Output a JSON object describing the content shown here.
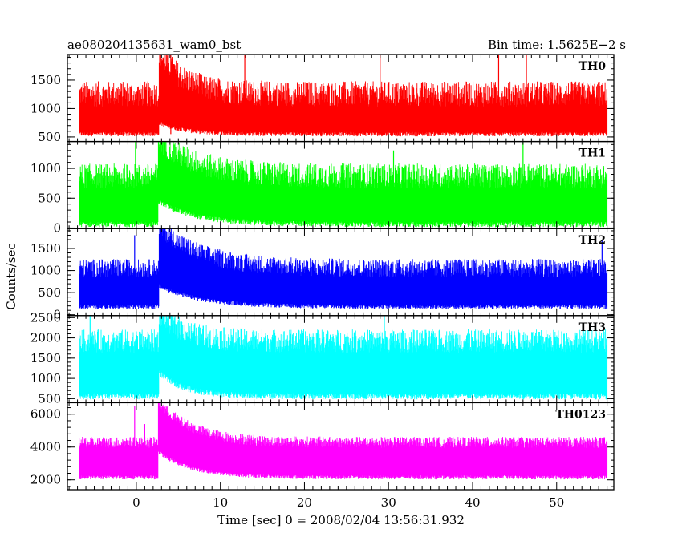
{
  "header": {
    "left": "ae080204135631_wam0_bst",
    "right": "Bin time: 1.5625E−2 s"
  },
  "axes": {
    "xlabel": "Time [sec] 0 = 2008/02/04 13:56:31.932",
    "ylabel": "Counts/sec"
  },
  "chart_data": {
    "type": "line",
    "x_range": [
      -8.2,
      56.8
    ],
    "x_ticks": [
      0,
      10,
      20,
      30,
      40,
      50
    ],
    "x_step": 0.015625,
    "panels": [
      {
        "name": "TH0",
        "color": "#ff0000",
        "y_range": [
          420,
          1950
        ],
        "y_ticks": [
          500,
          1000,
          1500
        ],
        "baseline": {
          "upper_mean": 1200,
          "upper_spread": 280,
          "lower": 550
        },
        "burst": {
          "start": 2.7,
          "peak_upper": 1950,
          "lower_peak": 750,
          "decay_sec": 3.0
        },
        "spikes": [
          {
            "x": 4.1,
            "y": 1950
          },
          {
            "x": 12.9,
            "y": 1950
          },
          {
            "x": 29.0,
            "y": 1950
          },
          {
            "x": 43.1,
            "y": 1950
          },
          {
            "x": 46.4,
            "y": 1950
          }
        ]
      },
      {
        "name": "TH1",
        "color": "#00ff00",
        "y_range": [
          -10,
          1450
        ],
        "y_ticks": [
          0,
          500,
          1000
        ],
        "baseline": {
          "upper_mean": 820,
          "upper_spread": 260,
          "lower": 60
        },
        "burst": {
          "start": 2.6,
          "peak_upper": 1450,
          "lower_peak": 450,
          "decay_sec": 4.5
        },
        "spikes": [
          {
            "x": -0.1,
            "y": 1450
          },
          {
            "x": 30.6,
            "y": 1300
          },
          {
            "x": 46.0,
            "y": 1450
          }
        ]
      },
      {
        "name": "TH2",
        "color": "#0000ff",
        "y_range": [
          -20,
          1950
        ],
        "y_ticks": [
          0,
          500,
          1000,
          1500
        ],
        "baseline": {
          "upper_mean": 1000,
          "upper_spread": 260,
          "lower": 180
        },
        "burst": {
          "start": 2.7,
          "peak_upper": 1950,
          "lower_peak": 650,
          "decay_sec": 5.0
        },
        "spikes": [
          {
            "x": -0.2,
            "y": 1800
          },
          {
            "x": 55.4,
            "y": 1700
          }
        ]
      },
      {
        "name": "TH3",
        "color": "#00ffff",
        "y_range": [
          400,
          2550
        ],
        "y_ticks": [
          500,
          1000,
          1500,
          2000,
          2500
        ],
        "baseline": {
          "upper_mean": 1850,
          "upper_spread": 360,
          "lower": 560
        },
        "burst": {
          "start": 2.7,
          "peak_upper": 2550,
          "lower_peak": 1150,
          "decay_sec": 3.0
        },
        "spikes": [
          {
            "x": -5.5,
            "y": 2550
          },
          {
            "x": 29.5,
            "y": 2550
          }
        ]
      },
      {
        "name": "TH0123",
        "color": "#ff00ff",
        "y_range": [
          1400,
          6700
        ],
        "y_ticks": [
          2000,
          4000,
          6000
        ],
        "baseline": {
          "upper_mean": 4200,
          "upper_spread": 420,
          "lower": 2150
        },
        "burst": {
          "start": 2.6,
          "peak_upper": 6700,
          "lower_peak": 3700,
          "decay_sec": 4.0
        },
        "spikes": [
          {
            "x": -0.2,
            "y": 6500
          },
          {
            "x": 1.0,
            "y": 5400
          }
        ]
      }
    ]
  }
}
